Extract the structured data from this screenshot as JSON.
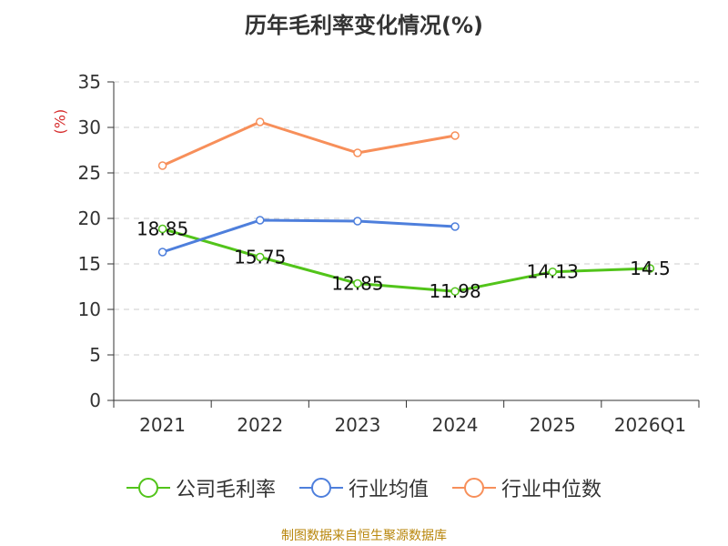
{
  "chart_data": {
    "type": "line",
    "title": "历年毛利率变化情况(%)",
    "ylabel": "(%)",
    "xlabel": "",
    "categories": [
      "2021",
      "2022",
      "2023",
      "2024",
      "2025",
      "2026Q1"
    ],
    "ylim": [
      0,
      35
    ],
    "yticks": [
      0,
      5,
      10,
      15,
      20,
      25,
      30,
      35
    ],
    "grid": true,
    "legend_position": "bottom",
    "series": [
      {
        "name": "公司毛利率",
        "color": "#52c41a",
        "values": [
          18.85,
          15.75,
          12.85,
          11.98,
          14.13,
          14.5
        ],
        "labels": [
          "18.85",
          "15.75",
          "12.85",
          "11.98",
          "14.13",
          "14.5"
        ]
      },
      {
        "name": "行业均值",
        "color": "#4e7fdc",
        "values": [
          16.3,
          19.8,
          19.7,
          19.1,
          null,
          null
        ]
      },
      {
        "name": "行业中位数",
        "color": "#f78f5a",
        "values": [
          25.8,
          30.6,
          27.2,
          29.1,
          null,
          null
        ]
      }
    ]
  },
  "source": "制图数据来自恒生聚源数据库"
}
